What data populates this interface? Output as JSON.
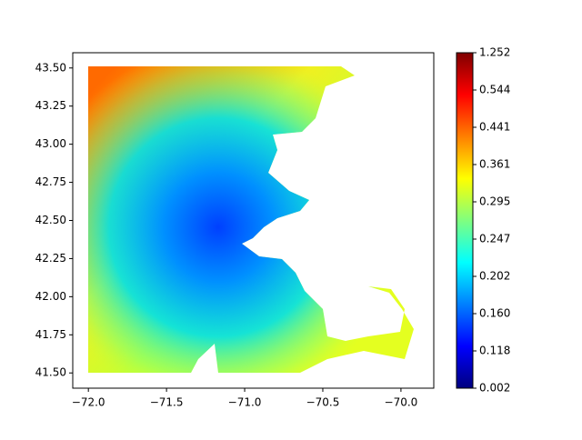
{
  "chart_data": {
    "type": "contour",
    "xlim": [
      -72.1,
      -69.79
    ],
    "ylim": [
      41.4,
      43.6
    ],
    "xticks": [
      {
        "value": -72,
        "label": "−72.0"
      },
      {
        "value": -71.5,
        "label": "−71.5"
      },
      {
        "value": -71,
        "label": "−71.0"
      },
      {
        "value": -70.5,
        "label": "−70.5"
      },
      {
        "value": -70,
        "label": "−70.0"
      }
    ],
    "yticks": [
      {
        "value": 41.5,
        "label": "41.50"
      },
      {
        "value": 41.75,
        "label": "41.75"
      },
      {
        "value": 42,
        "label": "42.00"
      },
      {
        "value": 42.25,
        "label": "42.25"
      },
      {
        "value": 42.5,
        "label": "42.50"
      },
      {
        "value": 42.75,
        "label": "42.75"
      },
      {
        "value": 43,
        "label": "43.00"
      },
      {
        "value": 43.25,
        "label": "43.25"
      },
      {
        "value": 43.5,
        "label": "43.50"
      }
    ],
    "colormap": "jet",
    "colorbar_ticks": [
      0.002,
      0.118,
      {
        "value": 0.16,
        "label": "0.160"
      },
      0.202,
      0.247,
      0.295,
      0.361,
      0.441,
      0.544,
      1.252
    ]
  }
}
